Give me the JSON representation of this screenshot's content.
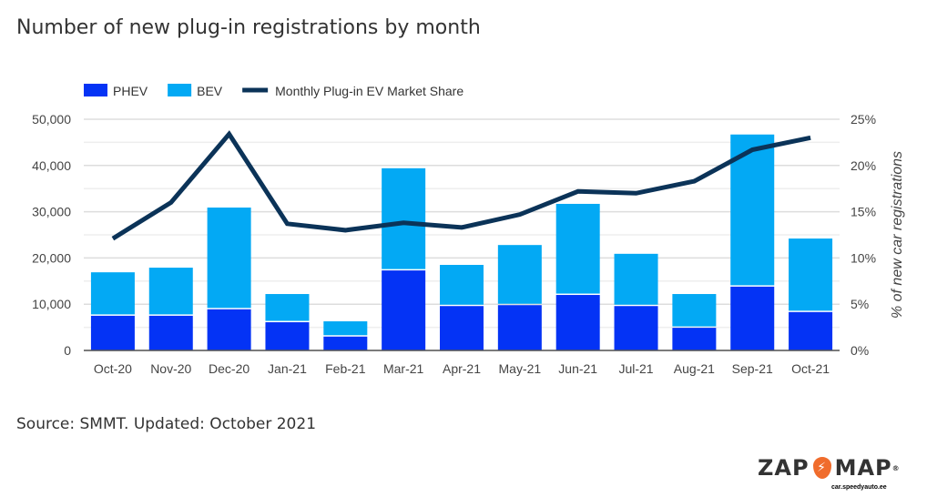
{
  "chart_data": {
    "type": "bar",
    "title": "Number of new plug-in registrations by month",
    "categories": [
      "Oct-20",
      "Nov-20",
      "Dec-20",
      "Jan-21",
      "Feb-21",
      "Mar-21",
      "Apr-21",
      "May-21",
      "Jun-21",
      "Jul-21",
      "Aug-21",
      "Sep-21",
      "Oct-21"
    ],
    "stacked": true,
    "series": [
      {
        "name": "PHEV",
        "type": "bar",
        "axis": "left",
        "color": "#0433f5",
        "values": [
          7500,
          7500,
          8900,
          6100,
          3000,
          17300,
          9600,
          9800,
          12000,
          9600,
          4900,
          13800,
          8300
        ]
      },
      {
        "name": "BEV",
        "type": "bar",
        "axis": "left",
        "color": "#03a9f4",
        "values": [
          9400,
          10400,
          22000,
          6100,
          3300,
          22100,
          8900,
          13000,
          19700,
          11300,
          7300,
          32900,
          15900
        ]
      },
      {
        "name": "Monthly Plug-in EV Market Share",
        "type": "line",
        "axis": "right",
        "color": "#0b3358",
        "values": [
          12.1,
          16.0,
          23.4,
          13.7,
          13.0,
          13.8,
          13.3,
          14.7,
          17.2,
          17.0,
          18.3,
          21.7,
          23.0
        ]
      }
    ],
    "yleft": {
      "ylim": [
        0,
        50000
      ],
      "ticks": [
        "0",
        "10,000",
        "20,000",
        "30,000",
        "40,000",
        "50,000"
      ]
    },
    "yright": {
      "ylim": [
        0,
        25
      ],
      "label": "% of new car registrations",
      "ticks": [
        "0%",
        "5%",
        "10%",
        "15%",
        "20%",
        "25%"
      ]
    },
    "grid": true,
    "legend_position": "top-left"
  },
  "source": "Source: SMMT. Updated: October 2021",
  "logo": {
    "left": "ZAP",
    "right": "MAP",
    "mark": "®"
  },
  "credit": "car.speedyauto.ee"
}
